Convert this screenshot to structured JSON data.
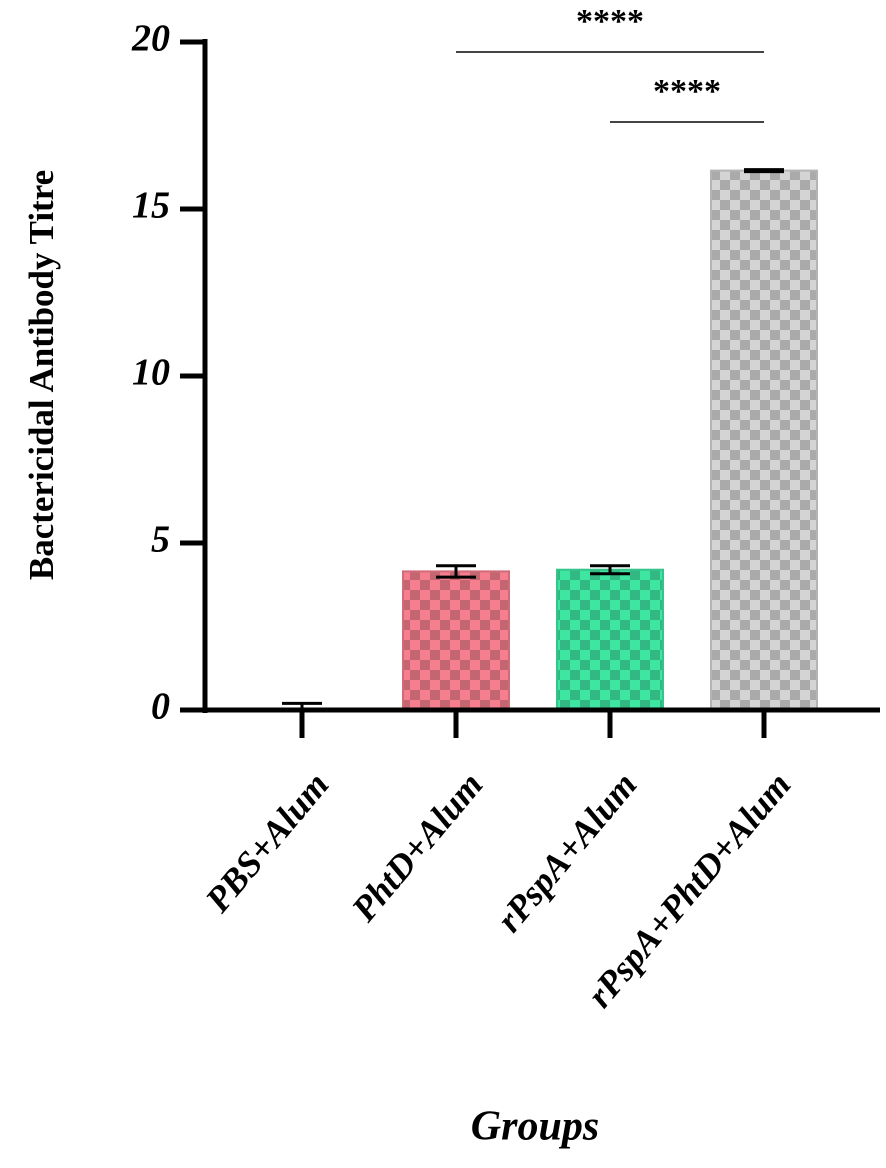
{
  "chart_data": {
    "type": "bar",
    "y_label": "Bactericidal Antibody Titre",
    "x_label": "Groups",
    "categories": [
      "PBS+Alum",
      "PhtD+Alum",
      "rPspA+Alum",
      "rPspA+PhtD+Alum"
    ],
    "values": [
      0,
      4.15,
      4.2,
      16.15
    ],
    "errors": [
      0.2,
      0.17,
      0.12,
      0.03
    ],
    "colors": [
      "#ffffff",
      "#f57f8e",
      "#3ee6a2",
      "#d4d4d4"
    ],
    "pattern": "checker",
    "ylim": [
      0,
      20
    ],
    "yticks": [
      0,
      5,
      10,
      15,
      20
    ],
    "annotations": [
      {
        "text": "****",
        "from": "PhtD+Alum",
        "to": "rPspA+PhtD+Alum"
      },
      {
        "text": "****",
        "from": "rPspA+Alum",
        "to": "rPspA+PhtD+Alum"
      }
    ]
  }
}
